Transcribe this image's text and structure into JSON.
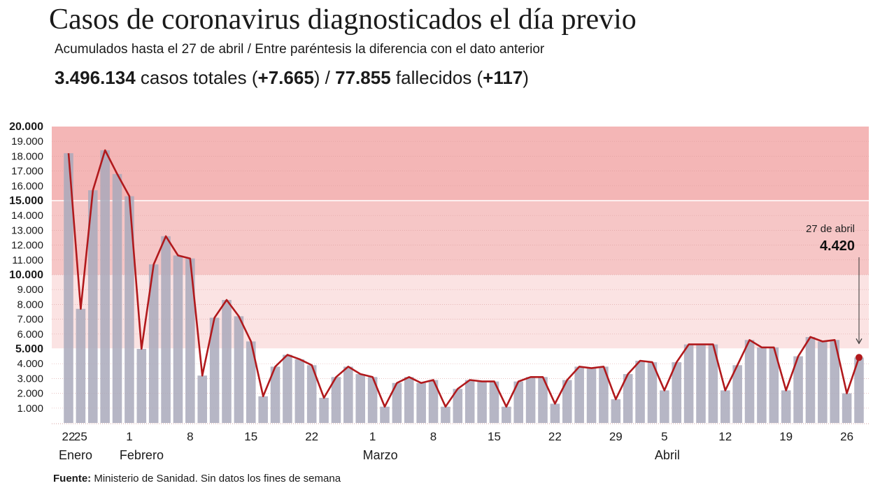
{
  "header": {
    "title": "Casos de coronavirus diagnosticados el día previo",
    "subtitle": "Acumulados hasta el 27 de abril / Entre paréntesis la diferencia con el dato anterior",
    "stats": {
      "total_cases": "3.496.134",
      "total_cases_label": " casos totales (",
      "total_cases_diff": "+7.665",
      "separator": ") / ",
      "deaths": "77.855",
      "deaths_label": " fallecidos (",
      "deaths_diff": "+117",
      "close": ")"
    }
  },
  "source": {
    "label": "Fuente:",
    "text": " Ministerio de Sanidad. Sin datos los fines de semana"
  },
  "chart_data": {
    "type": "bar",
    "title": "Casos de coronavirus diagnosticados el día previo",
    "ylim": [
      0,
      20000
    ],
    "yticks": [
      "1.000",
      "2.000",
      "3.000",
      "4.000",
      "5.000",
      "6.000",
      "7.000",
      "8.000",
      "9.000",
      "10.000",
      "11.000",
      "12.000",
      "13.000",
      "14.000",
      "15.000",
      "16.000",
      "17.000",
      "18.000",
      "19.000",
      "20.000"
    ],
    "bold_ticks": [
      "5.000",
      "10.000",
      "15.000",
      "20.000"
    ],
    "bands": [
      {
        "from": 0,
        "to": 5000,
        "color": "#ffffff"
      },
      {
        "from": 5000,
        "to": 10000,
        "color": "#fbe3e3"
      },
      {
        "from": 10000,
        "to": 15000,
        "color": "#f6c6c6"
      },
      {
        "from": 15000,
        "to": 20000,
        "color": "#f4b6b6"
      }
    ],
    "values": [
      18200,
      7700,
      15700,
      18400,
      16800,
      15300,
      5000,
      10700,
      12600,
      11300,
      11100,
      3200,
      7100,
      8300,
      7200,
      5500,
      1800,
      3800,
      4600,
      4300,
      3900,
      1700,
      3100,
      3800,
      3300,
      3100,
      1100,
      2700,
      3100,
      2700,
      2900,
      1100,
      2300,
      2900,
      2800,
      2800,
      1100,
      2800,
      3100,
      3100,
      1300,
      2900,
      3800,
      3700,
      3800,
      1600,
      3300,
      4200,
      4100,
      2200,
      4100,
      5300,
      5300,
      5300,
      2200,
      3900,
      5600,
      5100,
      5100,
      2200,
      4500,
      5800,
      5500,
      5600,
      2000,
      4420
    ],
    "x_ticks": [
      {
        "index": 0,
        "label": "22",
        "month": "Enero"
      },
      {
        "index": 1,
        "label": "25"
      },
      {
        "index": 5,
        "label": "1",
        "month": "Febrero"
      },
      {
        "index": 10,
        "label": "8"
      },
      {
        "index": 15,
        "label": "15"
      },
      {
        "index": 20,
        "label": "22"
      },
      {
        "index": 25,
        "label": "1",
        "month": "Marzo"
      },
      {
        "index": 30,
        "label": "8"
      },
      {
        "index": 35,
        "label": "15"
      },
      {
        "index": 40,
        "label": "22"
      },
      {
        "index": 45,
        "label": "29"
      },
      {
        "index": 49,
        "label": "5",
        "month": "Abril"
      },
      {
        "index": 54,
        "label": "12"
      },
      {
        "index": 59,
        "label": "19"
      },
      {
        "index": 64,
        "label": "26"
      }
    ],
    "annotation": {
      "index": 65,
      "date": "27 de abril",
      "value": "4.420"
    },
    "colors": {
      "bar": "#a9a9bb",
      "line": "#b1191c",
      "marker": "#b1191c"
    }
  }
}
